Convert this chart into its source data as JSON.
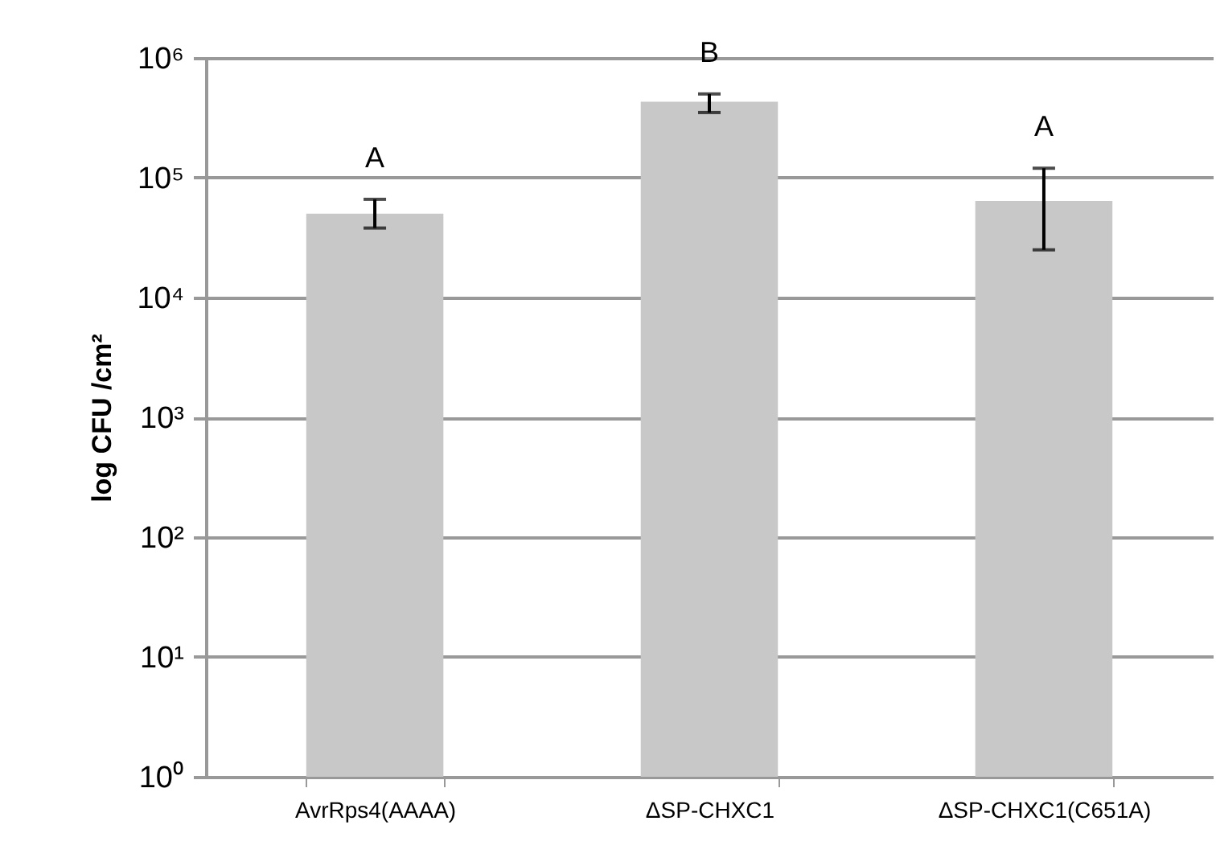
{
  "chart_data": {
    "type": "bar",
    "ylabel": "log CFU /cm²",
    "categories": [
      "AvrRps4(AAAA)",
      "ΔSP-CHXC1",
      "ΔSP-CHXC1(C651A)"
    ],
    "values": [
      50000,
      430000,
      64000
    ],
    "errors": [
      [
        38000,
        66000
      ],
      [
        350000,
        500000
      ],
      [
        25000,
        120000
      ]
    ],
    "color": "#c8c8c8",
    "log": "y",
    "grid": "y",
    "ylim": [
      1,
      1000000
    ],
    "yticks": [
      {
        "value": 1,
        "label": "10⁰"
      },
      {
        "value": 10,
        "label": "10¹"
      },
      {
        "value": 100,
        "label": "10²"
      },
      {
        "value": 1000,
        "label": "10³"
      },
      {
        "value": 10000,
        "label": "10⁴"
      },
      {
        "value": 100000,
        "label": "10⁵"
      },
      {
        "value": 1000000,
        "label": "10⁶"
      }
    ],
    "annotations": [
      "A",
      "B",
      "A"
    ]
  }
}
